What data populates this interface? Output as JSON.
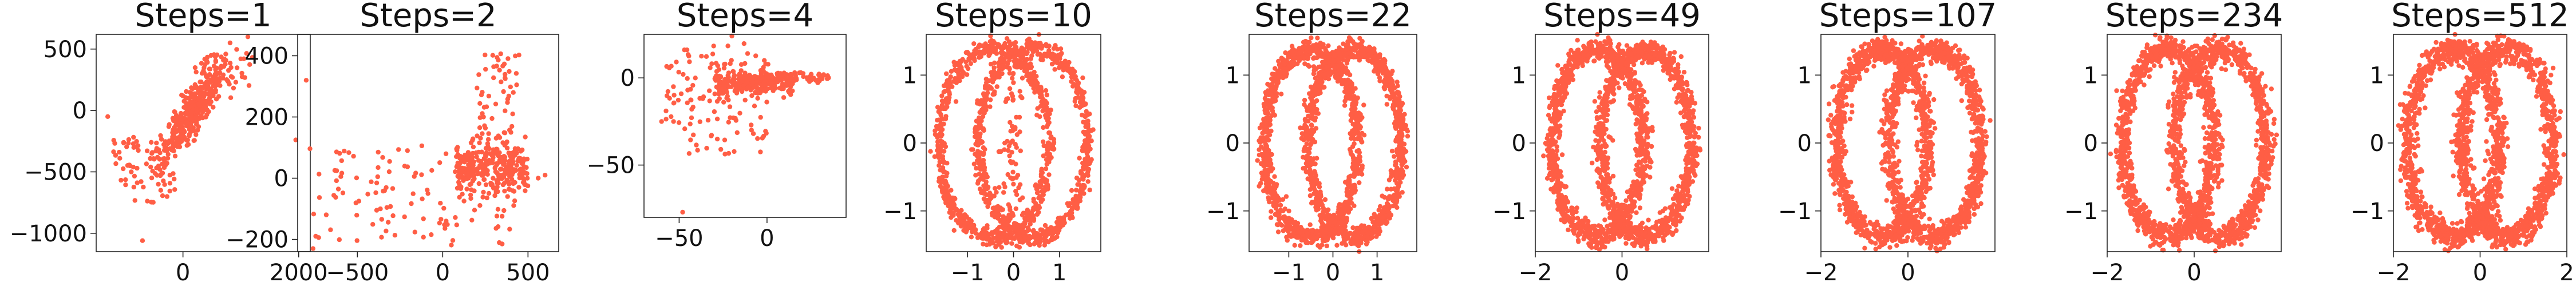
{
  "colors": {
    "marker": "#FF5E45",
    "axes": "#222222"
  },
  "chart_data": [
    {
      "type": "scatter",
      "title": "Steps=1",
      "xlim": [
        -1500,
        2200
      ],
      "ylim": [
        -1150,
        620
      ],
      "xticks": [
        0,
        2000
      ],
      "xticklabels": [
        "0",
        "2000"
      ],
      "yticks": [
        500,
        0,
        -500,
        -1000
      ],
      "yticklabels": [
        "500",
        "0",
        "−500",
        "−1000"
      ]
    },
    {
      "type": "scatter",
      "title": "Steps=2",
      "xlim": [
        -850,
        680
      ],
      "ylim": [
        -240,
        470
      ],
      "xticks": [
        -500,
        0,
        500
      ],
      "xticklabels": [
        "−500",
        "0",
        "500"
      ],
      "yticks": [
        400,
        200,
        0,
        -200
      ],
      "yticklabels": [
        "400",
        "200",
        "0",
        "−200"
      ]
    },
    {
      "type": "scatter",
      "title": "Steps=4",
      "xlim": [
        -70,
        45
      ],
      "ylim": [
        -80,
        25
      ],
      "xticks": [
        -50,
        0
      ],
      "xticklabels": [
        "−50",
        "0"
      ],
      "yticks": [
        0,
        -50
      ],
      "yticklabels": [
        "0",
        "−50"
      ]
    },
    {
      "type": "scatter",
      "title": "Steps=10",
      "xlim": [
        -1.9,
        1.9
      ],
      "ylim": [
        -1.6,
        1.6
      ],
      "xticks": [
        -1,
        0,
        1
      ],
      "xticklabels": [
        "−1",
        "0",
        "1"
      ],
      "yticks": [
        1,
        0,
        -1
      ],
      "yticklabels": [
        "1",
        "0",
        "−1"
      ]
    },
    {
      "type": "scatter",
      "title": "Steps=22",
      "xlim": [
        -1.9,
        1.9
      ],
      "ylim": [
        -1.6,
        1.6
      ],
      "xticks": [
        -1,
        0,
        1
      ],
      "xticklabels": [
        "−1",
        "0",
        "1"
      ],
      "yticks": [
        1,
        0,
        -1
      ],
      "yticklabels": [
        "1",
        "0",
        "−1"
      ]
    },
    {
      "type": "scatter",
      "title": "Steps=49",
      "xlim": [
        -2.0,
        2.0
      ],
      "ylim": [
        -1.6,
        1.6
      ],
      "xticks": [
        -2,
        0
      ],
      "xticklabels": [
        "−2",
        "0"
      ],
      "yticks": [
        1,
        0,
        -1
      ],
      "yticklabels": [
        "1",
        "0",
        "−1"
      ]
    },
    {
      "type": "scatter",
      "title": "Steps=107",
      "xlim": [
        -2.0,
        2.0
      ],
      "ylim": [
        -1.6,
        1.6
      ],
      "xticks": [
        -2,
        0
      ],
      "xticklabels": [
        "−2",
        "0"
      ],
      "yticks": [
        1,
        0,
        -1
      ],
      "yticklabels": [
        "1",
        "0",
        "−1"
      ]
    },
    {
      "type": "scatter",
      "title": "Steps=234",
      "xlim": [
        -2.0,
        2.0
      ],
      "ylim": [
        -1.6,
        1.6
      ],
      "xticks": [
        -2,
        0
      ],
      "xticklabels": [
        "−2",
        "0"
      ],
      "yticks": [
        1,
        0,
        -1
      ],
      "yticklabels": [
        "1",
        "0",
        "−1"
      ]
    },
    {
      "type": "scatter",
      "title": "Steps=512",
      "xlim": [
        -2.0,
        2.0
      ],
      "ylim": [
        -1.6,
        1.6
      ],
      "xticks": [
        -2,
        0,
        2
      ],
      "xticklabels": [
        "−2",
        "0",
        "2"
      ],
      "yticks": [
        1,
        0,
        -1
      ],
      "yticklabels": [
        "1",
        "0",
        "−1"
      ]
    }
  ]
}
